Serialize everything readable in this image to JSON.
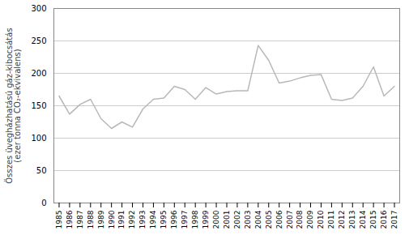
{
  "chart_data": {
    "type": "line",
    "x": [
      1985,
      1986,
      1987,
      1988,
      1989,
      1990,
      1991,
      1992,
      1993,
      1994,
      1995,
      1996,
      1997,
      1998,
      1999,
      2000,
      2001,
      2002,
      2003,
      2004,
      2005,
      2006,
      2007,
      2008,
      2009,
      2010,
      2011,
      2012,
      2013,
      2014,
      2015,
      2016,
      2017
    ],
    "values": [
      165,
      137,
      152,
      160,
      130,
      115,
      125,
      117,
      145,
      160,
      162,
      180,
      175,
      160,
      178,
      168,
      172,
      173,
      173,
      243,
      220,
      185,
      188,
      193,
      197,
      198,
      160,
      158,
      162,
      180,
      210,
      165,
      180
    ],
    "color": "#b8b8b8",
    "y_label": "Összes üvegházhatású gáz-kibocsátás\n(ezer tonna CO₂-ekvivalens)",
    "xlim": [
      1984.5,
      2017.5
    ],
    "xticks": [
      1985,
      1986,
      1987,
      1988,
      1989,
      1990,
      1991,
      1992,
      1993,
      1994,
      1995,
      1996,
      1997,
      1998,
      1999,
      2000,
      2001,
      2002,
      2003,
      2004,
      2005,
      2006,
      2007,
      2008,
      2009,
      2010,
      2011,
      2012,
      2013,
      2014,
      2015,
      2016,
      2017
    ],
    "ylim": [
      0,
      300
    ],
    "yticks": [
      0,
      50,
      100,
      150,
      200,
      250,
      300
    ],
    "grid": true
  }
}
